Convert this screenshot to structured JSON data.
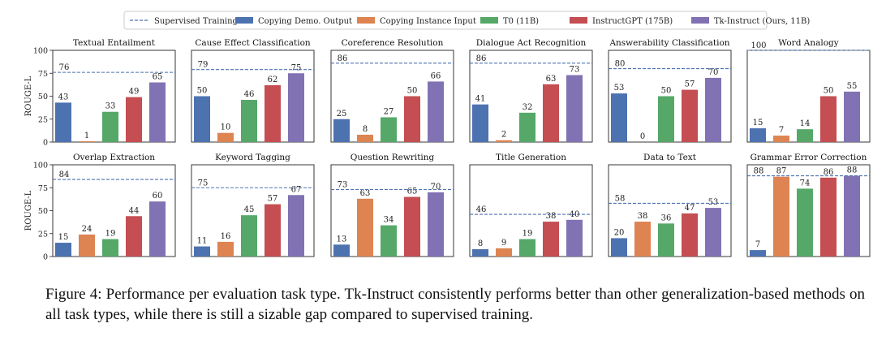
{
  "legend": [
    {
      "label": "Supervised Training",
      "style": "dashed",
      "color": "#4c72b0"
    },
    {
      "label": "Copying Demo. Output",
      "color": "#4c72b0"
    },
    {
      "label": "Copying Instance Input",
      "color": "#dd8452"
    },
    {
      "label": "T0 (11B)",
      "color": "#55a868"
    },
    {
      "label": "InstructGPT (175B)",
      "color": "#c44e52"
    },
    {
      "label": "Tk-Instruct (Ours, 11B)",
      "color": "#8172b3"
    }
  ],
  "caption": "Figure 4:  Performance per evaluation task type.  Tk-Instruct consistently performs better than other generalization-based methods on all task types, while there is still a sizable gap compared to supervised training.",
  "chart_data": {
    "type": "bar",
    "ylabel": "ROUGE-L",
    "ylim": [
      0,
      100
    ],
    "yticks": [
      0,
      25,
      50,
      75,
      100
    ],
    "series_names": [
      "Copying Demo. Output",
      "Copying Instance Input",
      "T0 (11B)",
      "InstructGPT (175B)",
      "Tk-Instruct (Ours, 11B)"
    ],
    "reference_line": "Supervised Training",
    "panels": [
      {
        "title": "Textual Entailment",
        "supervised": 76,
        "values": [
          43,
          1,
          33,
          49,
          65
        ]
      },
      {
        "title": "Cause Effect Classification",
        "supervised": 79,
        "values": [
          50,
          10,
          46,
          62,
          75
        ]
      },
      {
        "title": "Coreference Resolution",
        "supervised": 86,
        "values": [
          25,
          8,
          27,
          50,
          66
        ]
      },
      {
        "title": "Dialogue Act Recognition",
        "supervised": 86,
        "values": [
          41,
          2,
          32,
          63,
          73
        ]
      },
      {
        "title": "Answerability Classification",
        "supervised": 80,
        "values": [
          53,
          0,
          50,
          57,
          70
        ]
      },
      {
        "title": "Word Analogy",
        "supervised": 100,
        "values": [
          15,
          7,
          14,
          50,
          55
        ]
      },
      {
        "title": "Overlap Extraction",
        "supervised": 84,
        "values": [
          15,
          24,
          19,
          44,
          60
        ]
      },
      {
        "title": "Keyword Tagging",
        "supervised": 75,
        "values": [
          11,
          16,
          45,
          57,
          67
        ]
      },
      {
        "title": "Question Rewriting",
        "supervised": 73,
        "values": [
          13,
          63,
          34,
          65,
          70
        ]
      },
      {
        "title": "Title Generation",
        "supervised": 46,
        "values": [
          8,
          9,
          19,
          38,
          40
        ]
      },
      {
        "title": "Data to Text",
        "supervised": 58,
        "values": [
          20,
          38,
          36,
          47,
          53
        ]
      },
      {
        "title": "Grammar Error Correction",
        "supervised": 88,
        "values": [
          7,
          87,
          74,
          86,
          88
        ]
      }
    ]
  }
}
